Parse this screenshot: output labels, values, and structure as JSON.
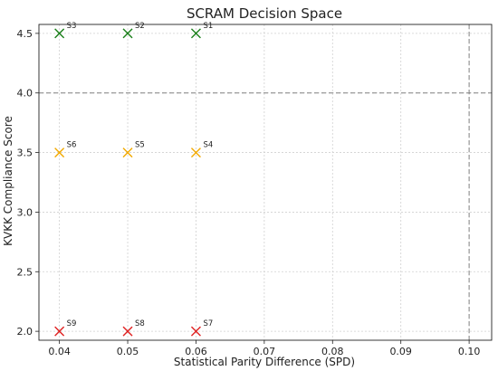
{
  "chart_data": {
    "type": "scatter",
    "title": "SCRAM Decision Space",
    "xlabel": "Statistical Parity Difference (SPD)",
    "ylabel": "KVKK Compliance Score",
    "xlim": [
      0.037,
      0.1033
    ],
    "ylim": [
      1.925,
      4.575
    ],
    "x_ticks": [
      "0.04",
      "0.05",
      "0.06",
      "0.07",
      "0.08",
      "0.09",
      "0.10"
    ],
    "y_ticks": [
      "2.0",
      "2.5",
      "3.0",
      "3.5",
      "4.0",
      "4.5"
    ],
    "grid": true,
    "marker": "x",
    "reference_lines": [
      {
        "axis": "y",
        "value": 4.0,
        "style": "dashed",
        "color": "#808080"
      },
      {
        "axis": "x",
        "value": 0.1,
        "style": "dashed",
        "color": "#808080"
      }
    ],
    "points": [
      {
        "label": "S1",
        "x": 0.06,
        "y": 4.5,
        "color": "#1a7f1a"
      },
      {
        "label": "S2",
        "x": 0.05,
        "y": 4.5,
        "color": "#1a7f1a"
      },
      {
        "label": "S3",
        "x": 0.04,
        "y": 4.5,
        "color": "#1a7f1a"
      },
      {
        "label": "S4",
        "x": 0.06,
        "y": 3.5,
        "color": "#f2a900"
      },
      {
        "label": "S5",
        "x": 0.05,
        "y": 3.5,
        "color": "#f2a900"
      },
      {
        "label": "S6",
        "x": 0.04,
        "y": 3.5,
        "color": "#f2a900"
      },
      {
        "label": "S7",
        "x": 0.06,
        "y": 2.0,
        "color": "#e02020"
      },
      {
        "label": "S8",
        "x": 0.05,
        "y": 2.0,
        "color": "#e02020"
      },
      {
        "label": "S9",
        "x": 0.04,
        "y": 2.0,
        "color": "#e02020"
      }
    ]
  }
}
